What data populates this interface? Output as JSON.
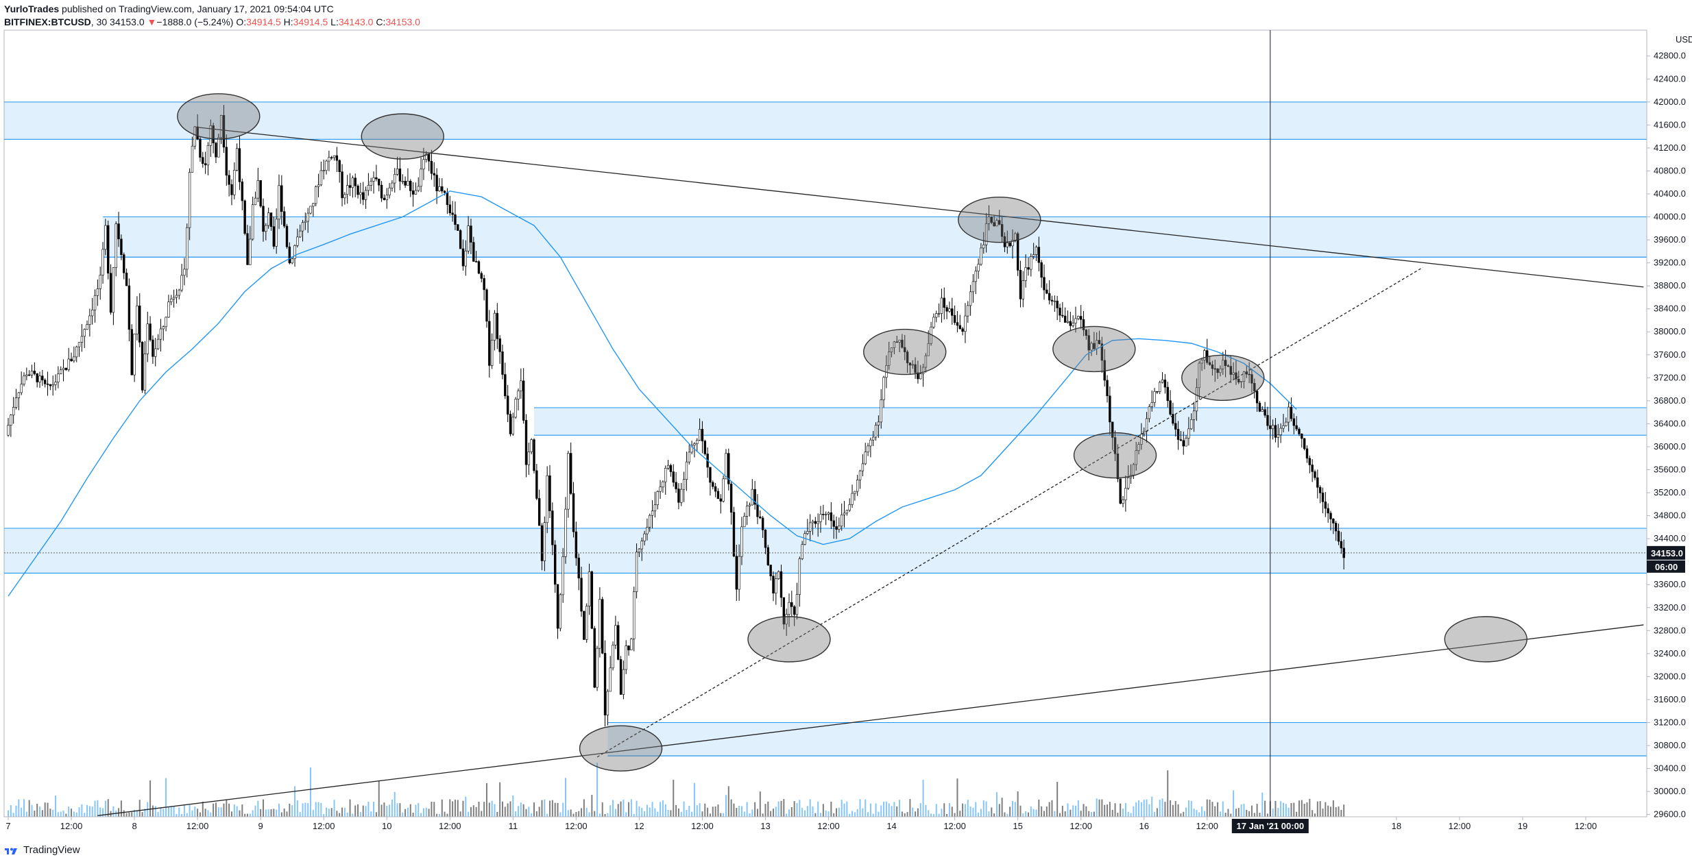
{
  "header": {
    "author": "YurloTrades",
    "published": "published on TradingView.com, January 17, 2021 09:54:04 UTC",
    "symbol": "BITFINEX:BTCUSD",
    "interval": "30",
    "last": "34153.0",
    "change_arrow": "▼",
    "change": "−1888.0 (−5.24%)",
    "o_label": "O:",
    "o_value": "34914.5",
    "h_label": "H:",
    "h_value": "34914.5",
    "l_label": "L:",
    "l_value": "34143.0",
    "c_label": "C:",
    "c_value": "34153.0"
  },
  "footer": {
    "brand": "TradingView",
    "logo_icon": "tradingview-logo-icon"
  },
  "chart_data": {
    "type": "candlestick",
    "currency_label": "USD",
    "y_ticks": [
      "42800.0",
      "42400.0",
      "42000.0",
      "41600.0",
      "41200.0",
      "40800.0",
      "40400.0",
      "40000.0",
      "39600.0",
      "39200.0",
      "38800.0",
      "38400.0",
      "38000.0",
      "37600.0",
      "37200.0",
      "36800.0",
      "36400.0",
      "36000.0",
      "35600.0",
      "35200.0",
      "34800.0",
      "34400.0",
      "33600.0",
      "33200.0",
      "32800.0",
      "32400.0",
      "32000.0",
      "31600.0",
      "31200.0",
      "30800.0",
      "30400.0",
      "30000.0",
      "29600.0"
    ],
    "ylim": [
      29560,
      43250
    ],
    "x_ticks": [
      {
        "label": "7",
        "t": 0
      },
      {
        "label": "12:00",
        "t": 12
      },
      {
        "label": "8",
        "t": 24
      },
      {
        "label": "12:00",
        "t": 36
      },
      {
        "label": "9",
        "t": 48
      },
      {
        "label": "12:00",
        "t": 60
      },
      {
        "label": "10",
        "t": 72
      },
      {
        "label": "12:00",
        "t": 84
      },
      {
        "label": "11",
        "t": 96
      },
      {
        "label": "12:00",
        "t": 108
      },
      {
        "label": "12",
        "t": 120
      },
      {
        "label": "12:00",
        "t": 132
      },
      {
        "label": "13",
        "t": 144
      },
      {
        "label": "12:00",
        "t": 156
      },
      {
        "label": "14",
        "t": 168
      },
      {
        "label": "12:00",
        "t": 180
      },
      {
        "label": "15",
        "t": 192
      },
      {
        "label": "12:00",
        "t": 204
      },
      {
        "label": "16",
        "t": 216
      },
      {
        "label": "12:00",
        "t": 228
      },
      {
        "label": "18",
        "t": 264
      },
      {
        "label": "12:00",
        "t": 276
      },
      {
        "label": "19",
        "t": 288
      },
      {
        "label": "12:00",
        "t": 300
      }
    ],
    "x_unit": "hours since Jan 7 00:00 (2021)",
    "last_price_label": "34153.0",
    "countdown_label": "06:00",
    "last_price": 34153,
    "crosshair_label": "17 Jan '21  00:00",
    "crosshair_t": 240,
    "zones": [
      {
        "low": 41350,
        "high": 42000,
        "t_start": -1
      },
      {
        "low": 39300,
        "high": 40000,
        "t_start": 18
      },
      {
        "low": 36200,
        "high": 36680,
        "t_start": 100
      },
      {
        "low": 33800,
        "high": 34580,
        "t_start": -1
      },
      {
        "low": 30620,
        "high": 31200,
        "t_start": 114
      }
    ],
    "trendlines": [
      {
        "t1": 36,
        "p1": 41560,
        "t2": 311,
        "p2": 38780,
        "style": "solid"
      },
      {
        "t1": 17,
        "p1": 29580,
        "t2": 311,
        "p2": 32900,
        "style": "solid"
      },
      {
        "t1": 112,
        "p1": 30600,
        "t2": 269,
        "p2": 39120,
        "style": "dashed"
      }
    ],
    "ellipses": [
      {
        "t": 40,
        "p": 41750
      },
      {
        "t": 75,
        "p": 41400
      },
      {
        "t": 116.5,
        "p": 30750
      },
      {
        "t": 148.5,
        "p": 32650
      },
      {
        "t": 170.5,
        "p": 37650
      },
      {
        "t": 188.5,
        "p": 39950
      },
      {
        "t": 206.5,
        "p": 37700
      },
      {
        "t": 210.5,
        "p": 35850
      },
      {
        "t": 231,
        "p": 37200
      },
      {
        "t": 281,
        "p": 32650
      }
    ],
    "ma_points": [
      [
        0,
        33400
      ],
      [
        5,
        34050
      ],
      [
        10,
        34700
      ],
      [
        15,
        35450
      ],
      [
        20,
        36150
      ],
      [
        25,
        36800
      ],
      [
        30,
        37300
      ],
      [
        35,
        37700
      ],
      [
        40,
        38150
      ],
      [
        45,
        38700
      ],
      [
        50,
        39100
      ],
      [
        55,
        39350
      ],
      [
        60,
        39520
      ],
      [
        65,
        39700
      ],
      [
        70,
        39850
      ],
      [
        75,
        40000
      ],
      [
        80,
        40250
      ],
      [
        84,
        40450
      ],
      [
        90,
        40350
      ],
      [
        95,
        40100
      ],
      [
        100,
        39850
      ],
      [
        105,
        39300
      ],
      [
        110,
        38500
      ],
      [
        115,
        37700
      ],
      [
        120,
        37000
      ],
      [
        125,
        36500
      ],
      [
        130,
        36000
      ],
      [
        135,
        35600
      ],
      [
        140,
        35200
      ],
      [
        145,
        34800
      ],
      [
        150,
        34450
      ],
      [
        155,
        34300
      ],
      [
        160,
        34400
      ],
      [
        165,
        34700
      ],
      [
        170,
        34950
      ],
      [
        175,
        35100
      ],
      [
        180,
        35250
      ],
      [
        185,
        35500
      ],
      [
        190,
        36000
      ],
      [
        195,
        36500
      ],
      [
        200,
        37050
      ],
      [
        205,
        37600
      ],
      [
        210,
        37850
      ],
      [
        215,
        37880
      ],
      [
        220,
        37850
      ],
      [
        225,
        37800
      ],
      [
        230,
        37650
      ],
      [
        235,
        37450
      ],
      [
        240,
        37100
      ],
      [
        245,
        36650
      ]
    ],
    "price_path": [
      [
        0,
        36200
      ],
      [
        2,
        36900
      ],
      [
        4,
        37300
      ],
      [
        6,
        37200
      ],
      [
        8,
        37000
      ],
      [
        10,
        37200
      ],
      [
        13,
        37600
      ],
      [
        16,
        38300
      ],
      [
        18,
        38900
      ],
      [
        19,
        39800
      ],
      [
        20,
        38400
      ],
      [
        21,
        39900
      ],
      [
        22,
        39400
      ],
      [
        23,
        38800
      ],
      [
        24,
        37300
      ],
      [
        25,
        38500
      ],
      [
        26,
        37000
      ],
      [
        27,
        38200
      ],
      [
        28,
        37600
      ],
      [
        30,
        38100
      ],
      [
        31,
        38500
      ],
      [
        33,
        38800
      ],
      [
        34,
        39000
      ],
      [
        35,
        40800
      ],
      [
        36,
        41600
      ],
      [
        37,
        41100
      ],
      [
        38,
        40900
      ],
      [
        39,
        41600
      ],
      [
        40,
        41000
      ],
      [
        41,
        41800
      ],
      [
        42,
        40800
      ],
      [
        43,
        40400
      ],
      [
        44,
        41200
      ],
      [
        45,
        40200
      ],
      [
        46,
        39100
      ],
      [
        47,
        40200
      ],
      [
        48,
        40600
      ],
      [
        49,
        39700
      ],
      [
        50,
        40100
      ],
      [
        51,
        39400
      ],
      [
        52,
        40500
      ],
      [
        54,
        39200
      ],
      [
        56,
        39800
      ],
      [
        58,
        40100
      ],
      [
        60,
        40800
      ],
      [
        62,
        41100
      ],
      [
        63,
        41000
      ],
      [
        64,
        40400
      ],
      [
        66,
        40600
      ],
      [
        68,
        40300
      ],
      [
        70,
        40700
      ],
      [
        72,
        40300
      ],
      [
        74,
        40800
      ],
      [
        76,
        40600
      ],
      [
        78,
        40400
      ],
      [
        80,
        41100
      ],
      [
        82,
        40500
      ],
      [
        84,
        40300
      ],
      [
        86,
        39700
      ],
      [
        87,
        39100
      ],
      [
        88,
        39800
      ],
      [
        89,
        39300
      ],
      [
        91,
        38700
      ],
      [
        92,
        37500
      ],
      [
        93,
        38300
      ],
      [
        94,
        37600
      ],
      [
        96,
        36300
      ],
      [
        97,
        36900
      ],
      [
        98,
        37200
      ],
      [
        99,
        35600
      ],
      [
        100,
        36200
      ],
      [
        101,
        35100
      ],
      [
        102,
        34000
      ],
      [
        103,
        35500
      ],
      [
        104,
        34300
      ],
      [
        105,
        32800
      ],
      [
        106,
        34000
      ],
      [
        107,
        35800
      ],
      [
        108,
        34500
      ],
      [
        109,
        33700
      ],
      [
        110,
        32700
      ],
      [
        111,
        33800
      ],
      [
        112,
        31800
      ],
      [
        113,
        33300
      ],
      [
        114,
        31400
      ],
      [
        115,
        32200
      ],
      [
        116,
        32900
      ],
      [
        117,
        31700
      ],
      [
        118,
        32500
      ],
      [
        119,
        32600
      ],
      [
        120,
        34200
      ],
      [
        122,
        34600
      ],
      [
        124,
        35200
      ],
      [
        126,
        35700
      ],
      [
        128,
        35100
      ],
      [
        130,
        35900
      ],
      [
        132,
        36300
      ],
      [
        134,
        35400
      ],
      [
        136,
        35000
      ],
      [
        137,
        35800
      ],
      [
        138,
        34800
      ],
      [
        139,
        33500
      ],
      [
        140,
        34600
      ],
      [
        142,
        35200
      ],
      [
        144,
        34500
      ],
      [
        146,
        33400
      ],
      [
        147,
        33900
      ],
      [
        148,
        32900
      ],
      [
        149,
        33300
      ],
      [
        150,
        33000
      ],
      [
        151,
        34000
      ],
      [
        152,
        34500
      ],
      [
        154,
        34700
      ],
      [
        156,
        34900
      ],
      [
        158,
        34600
      ],
      [
        160,
        34900
      ],
      [
        162,
        35400
      ],
      [
        164,
        36000
      ],
      [
        166,
        36500
      ],
      [
        167,
        37200
      ],
      [
        168,
        37600
      ],
      [
        170,
        37900
      ],
      [
        172,
        37400
      ],
      [
        174,
        37200
      ],
      [
        176,
        38100
      ],
      [
        178,
        38500
      ],
      [
        180,
        38300
      ],
      [
        182,
        38000
      ],
      [
        184,
        38900
      ],
      [
        186,
        39600
      ],
      [
        187,
        40000
      ],
      [
        189,
        39800
      ],
      [
        190,
        39400
      ],
      [
        192,
        39700
      ],
      [
        193,
        38600
      ],
      [
        194,
        39100
      ],
      [
        196,
        39400
      ],
      [
        198,
        38600
      ],
      [
        200,
        38400
      ],
      [
        202,
        38100
      ],
      [
        204,
        38300
      ],
      [
        206,
        37700
      ],
      [
        208,
        37800
      ],
      [
        209,
        37200
      ],
      [
        210,
        36500
      ],
      [
        211,
        35800
      ],
      [
        212,
        35000
      ],
      [
        214,
        35500
      ],
      [
        216,
        36200
      ],
      [
        218,
        36800
      ],
      [
        220,
        37200
      ],
      [
        222,
        36400
      ],
      [
        224,
        36000
      ],
      [
        226,
        36600
      ],
      [
        227,
        37400
      ],
      [
        228,
        37600
      ],
      [
        230,
        37300
      ],
      [
        232,
        37500
      ],
      [
        234,
        37100
      ],
      [
        236,
        37300
      ],
      [
        238,
        36800
      ],
      [
        240,
        36400
      ],
      [
        242,
        36200
      ],
      [
        244,
        36600
      ],
      [
        246,
        36300
      ],
      [
        248,
        35700
      ],
      [
        250,
        35200
      ],
      [
        252,
        34800
      ],
      [
        253,
        34500
      ],
      [
        254,
        34153
      ]
    ]
  }
}
